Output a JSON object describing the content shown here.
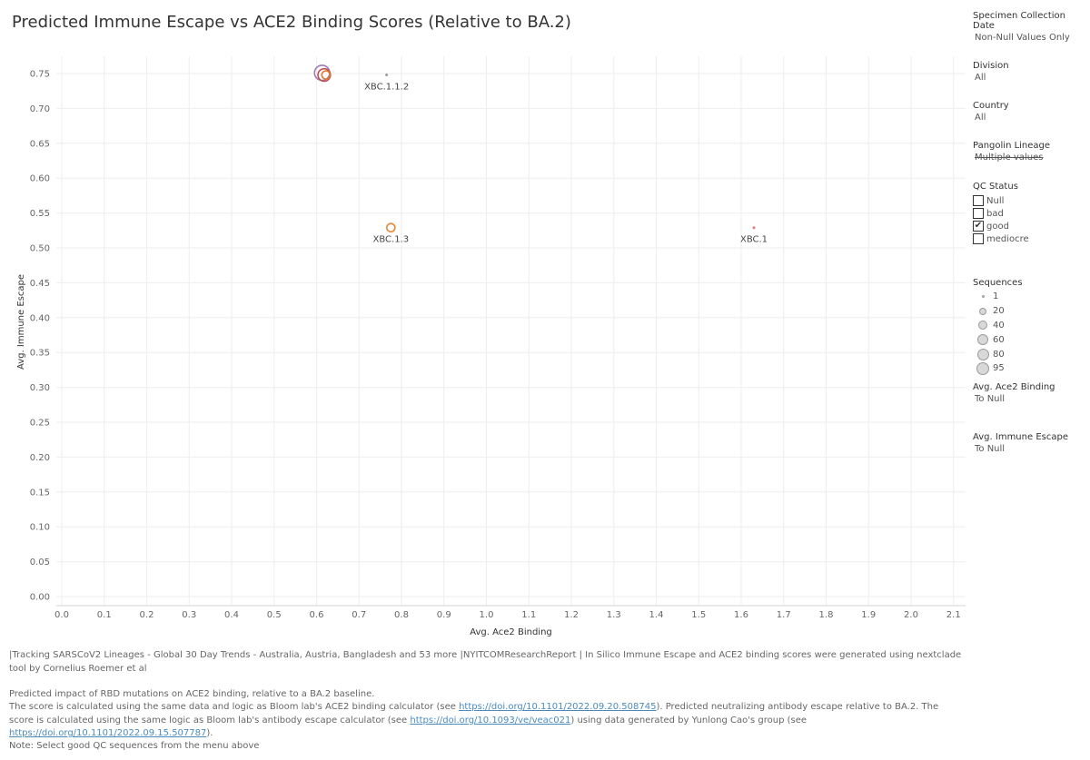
{
  "title": "Predicted Immune Escape vs ACE2 Binding Scores (Relative to BA.2)",
  "chart_data": {
    "type": "scatter",
    "xlabel": "Avg. Ace2 Binding",
    "ylabel": "Avg. Immune Escape",
    "xlim": [
      0.0,
      2.15
    ],
    "ylim": [
      0.0,
      0.77
    ],
    "xticks": [
      "0.0",
      "0.1",
      "0.2",
      "0.3",
      "0.4",
      "0.5",
      "0.6",
      "0.7",
      "0.8",
      "0.9",
      "1.0",
      "1.1",
      "1.2",
      "1.3",
      "1.4",
      "1.5",
      "1.6",
      "1.7",
      "1.8",
      "1.9",
      "2.0",
      "2.1"
    ],
    "yticks": [
      "0.00",
      "0.05",
      "0.10",
      "0.15",
      "0.20",
      "0.25",
      "0.30",
      "0.35",
      "0.40",
      "0.45",
      "0.50",
      "0.55",
      "0.60",
      "0.65",
      "0.70",
      "0.75"
    ],
    "grid": true,
    "points": [
      {
        "label": "",
        "x": 0.613,
        "y": 0.751,
        "size": 95,
        "color": "#9b7bb5"
      },
      {
        "label": "",
        "x": 0.618,
        "y": 0.748,
        "size": 60,
        "color": "#c0504d"
      },
      {
        "label": "",
        "x": 0.622,
        "y": 0.748,
        "size": 20,
        "color": "#e07b2c"
      },
      {
        "label": "XBC.1.1.2",
        "x": 0.765,
        "y": 0.748,
        "size": 1,
        "color": "#9a9a9a"
      },
      {
        "label": "XBC.1.3",
        "x": 0.775,
        "y": 0.529,
        "size": 20,
        "color": "#e8892f"
      },
      {
        "label": "XBC.1",
        "x": 1.63,
        "y": 0.529,
        "size": 1,
        "color": "#e0797a"
      }
    ]
  },
  "filters": {
    "collection_date": {
      "title": "Specimen Collection Date",
      "value": "Non-Null Values Only"
    },
    "division": {
      "title": "Division",
      "value": "All"
    },
    "country": {
      "title": "Country",
      "value": "All"
    },
    "lineage": {
      "title": "Pangolin Lineage",
      "value": "Multiple values"
    },
    "qc": {
      "title": "QC Status",
      "options": [
        {
          "label": "Null",
          "checked": ""
        },
        {
          "label": "bad",
          "checked": ""
        },
        {
          "label": "good",
          "checked": "✔"
        },
        {
          "label": "mediocre",
          "checked": ""
        }
      ]
    },
    "ace2": {
      "title": "Avg. Ace2 Binding",
      "value": "To Null"
    },
    "escape": {
      "title": "Avg. Immune Escape",
      "value": "To Null"
    }
  },
  "legend": {
    "title": "Sequences",
    "items": [
      {
        "label": "1",
        "size": 1
      },
      {
        "label": "20",
        "size": 20
      },
      {
        "label": "40",
        "size": 40
      },
      {
        "label": "60",
        "size": 60
      },
      {
        "label": "80",
        "size": 80
      },
      {
        "label": "95",
        "size": 95
      }
    ]
  },
  "footer": {
    "line1": "|Tracking SARSCoV2 Lineages - Global 30 Day Trends - Australia, Austria, Bangladesh and 53 more |NYITCOMResearchReport | In Silico Immune Escape and ACE2 binding scores were generated using nextclade tool by Cornelius Roemer et al",
    "line2": "Predicted impact of RBD mutations on ACE2 binding, relative to a BA.2 baseline.",
    "p3a": "The score is calculated using the same data and logic as Bloom lab's ACE2 binding calculator (see ",
    "link1": "https://doi.org/10.1101/2022.09.20.508745",
    "p3b": "). Predicted neutralizing antibody escape relative to BA.2. The score is calculated using the same logic as Bloom lab's antibody escape calculator (see ",
    "link2": "https://doi.org/10.1093/ve/veac021",
    "p3c": ") using data generated by Yunlong Cao's group (see ",
    "link3": "https://doi.org/10.1101/2022.09.15.507787",
    "p3d": ").",
    "note": "Note: Select good QC sequences from the menu above"
  }
}
